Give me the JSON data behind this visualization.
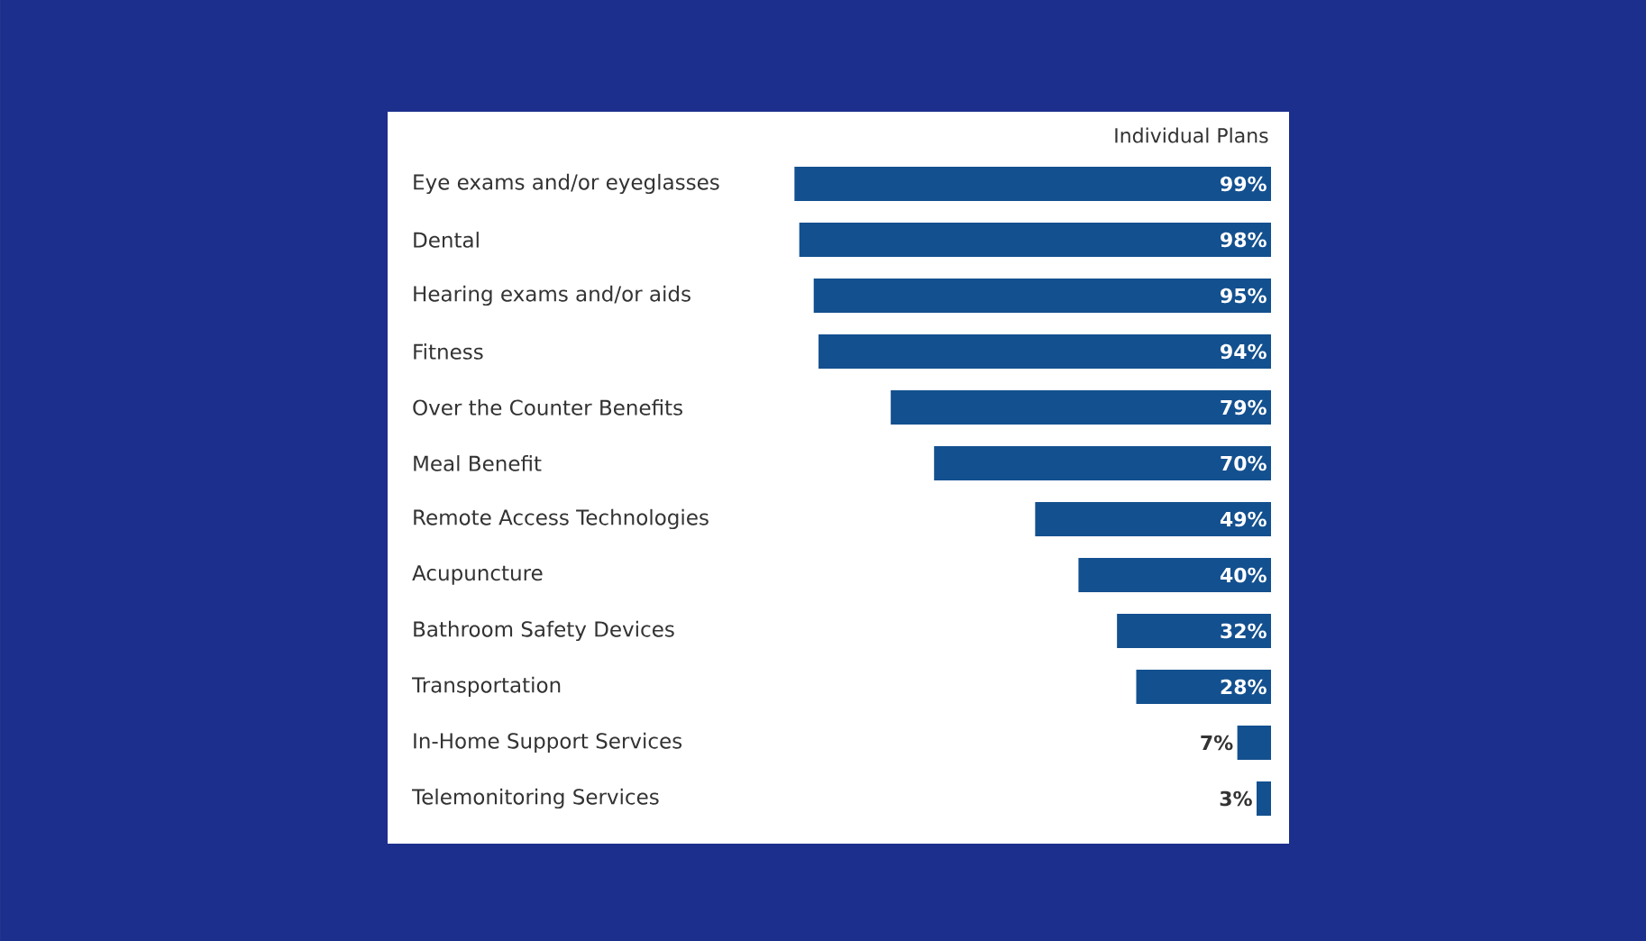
{
  "chart_data": {
    "type": "bar",
    "orientation": "horizontal",
    "title": "Individual Plans",
    "categories": [
      "Eye exams and/or eyeglasses",
      "Dental",
      "Hearing exams and/or aids",
      "Fitness",
      "Over the Counter Benefits",
      "Meal Benefit",
      "Remote Access Technologies",
      "Acupuncture",
      "Bathroom Safety Devices",
      "Transportation",
      "In-Home Support Services",
      "Telemonitoring Services"
    ],
    "values": [
      99,
      98,
      95,
      94,
      79,
      70,
      49,
      40,
      32,
      28,
      7,
      3
    ],
    "value_labels": [
      "99%",
      "98%",
      "95%",
      "94%",
      "79%",
      "70%",
      "49%",
      "40%",
      "32%",
      "28%",
      "7%",
      "3%"
    ],
    "color": "#13508f",
    "xlim": [
      100,
      0
    ]
  }
}
